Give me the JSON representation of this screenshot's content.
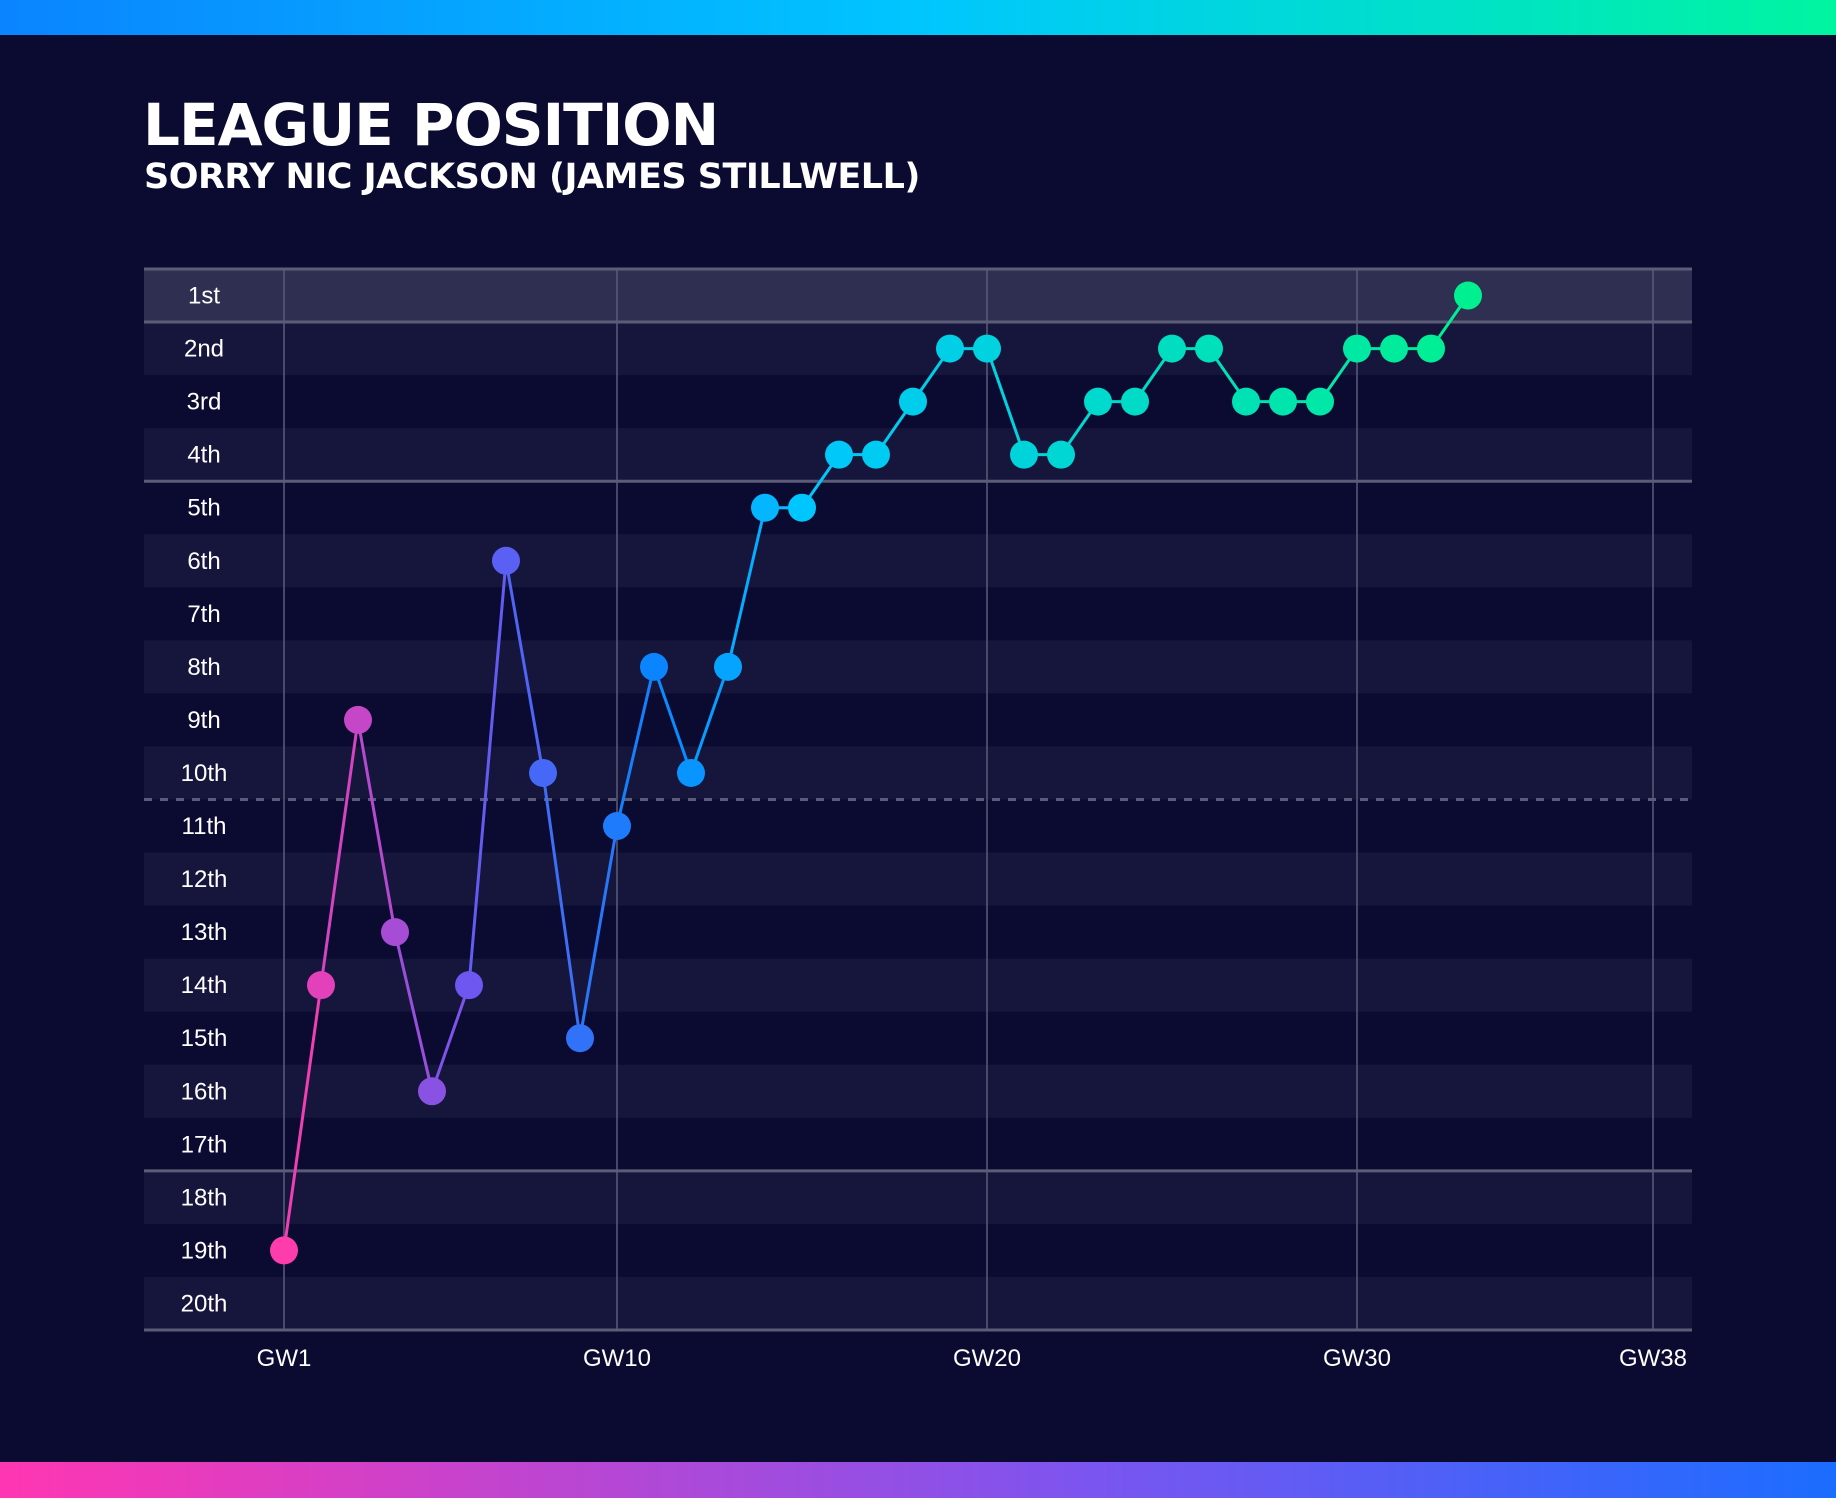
{
  "header": {
    "title": "LEAGUE POSITION",
    "subtitle": "SORRY NIC JACKSON (JAMES STILLWELL)"
  },
  "colors": {
    "background": "#0b0b31",
    "band_light": "#16163d",
    "band_top": "#2f2f52",
    "gridline": "#5c5c78",
    "start_point": "#ff3cac",
    "mid_point_low": "#6d57f0",
    "mid_point_blue": "#0a84ff",
    "mid_point_cyan": "#00c6ff",
    "end_point": "#00f08f"
  },
  "chart_data": {
    "type": "line",
    "title": "LEAGUE POSITION",
    "subtitle": "SORRY NIC JACKSON (JAMES STILLWELL)",
    "xlabel": "",
    "ylabel": "",
    "x_ticks": [
      1,
      10,
      20,
      30,
      38
    ],
    "x_tick_labels": [
      "GW1",
      "GW10",
      "GW20",
      "GW30",
      "GW38"
    ],
    "xlim": [
      1,
      38
    ],
    "y_tick_labels": [
      "1st",
      "2nd",
      "3rd",
      "4th",
      "5th",
      "6th",
      "7th",
      "8th",
      "9th",
      "10th",
      "11th",
      "12th",
      "13th",
      "14th",
      "15th",
      "16th",
      "17th",
      "18th",
      "19th",
      "20th"
    ],
    "ylim": [
      1,
      20
    ],
    "y_inverted": true,
    "reference_lines": [
      {
        "after_position": 1,
        "style": "solid"
      },
      {
        "after_position": 4,
        "style": "solid"
      },
      {
        "after_position": 10,
        "style": "dashed"
      },
      {
        "after_position": 17,
        "style": "solid"
      }
    ],
    "series": [
      {
        "x": [
          1,
          2,
          3,
          4,
          5,
          6,
          7,
          8,
          9,
          10,
          11,
          12,
          13,
          14,
          15,
          16,
          17,
          18,
          19,
          20,
          21,
          22,
          23,
          24,
          25,
          26,
          27,
          28,
          29,
          30,
          31,
          32,
          33
        ],
        "values": [
          19,
          14,
          9,
          13,
          16,
          14,
          6,
          10,
          15,
          11,
          8,
          10,
          8,
          5,
          5,
          4,
          4,
          3,
          2,
          2,
          4,
          4,
          3,
          3,
          2,
          2,
          3,
          3,
          3,
          2,
          2,
          2,
          1
        ]
      }
    ]
  }
}
